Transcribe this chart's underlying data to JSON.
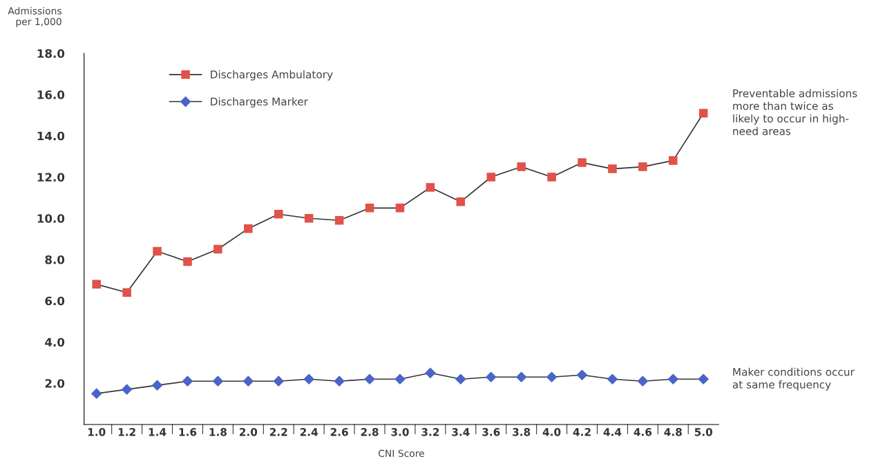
{
  "chart_data": {
    "type": "line",
    "xlabel": "CNI Score",
    "ylabel": "Admissions\nper 1,000",
    "categories": [
      "1.0",
      "1.2",
      "1.4",
      "1.6",
      "1.8",
      "2.0",
      "2.2",
      "2.4",
      "2.6",
      "2.8",
      "3.0",
      "3.2",
      "3.4",
      "3.6",
      "3.8",
      "4.0",
      "4.2",
      "4.4",
      "4.6",
      "4.8",
      "5.0"
    ],
    "series": [
      {
        "name": "Discharges Ambulatory",
        "color": "#e0524a",
        "marker": "square",
        "values": [
          6.8,
          6.4,
          8.4,
          7.9,
          8.5,
          9.5,
          10.2,
          10.0,
          9.9,
          10.5,
          10.5,
          11.5,
          10.8,
          12.0,
          12.5,
          12.0,
          12.7,
          12.4,
          12.5,
          12.8,
          15.1
        ]
      },
      {
        "name": "Discharges Marker",
        "color": "#4a64c8",
        "marker": "diamond",
        "values": [
          1.5,
          1.7,
          1.9,
          2.1,
          2.1,
          2.1,
          2.1,
          2.2,
          2.1,
          2.2,
          2.2,
          2.5,
          2.2,
          2.3,
          2.3,
          2.3,
          2.4,
          2.2,
          2.1,
          2.2,
          2.2
        ]
      }
    ],
    "ylim": [
      0,
      18
    ],
    "yticks": [
      {
        "value": 2,
        "label": "2.0"
      },
      {
        "value": 4,
        "label": "4.0"
      },
      {
        "value": 6,
        "label": "6.0"
      },
      {
        "value": 8,
        "label": "8.0"
      },
      {
        "value": 10,
        "label": "10.0"
      },
      {
        "value": 12,
        "label": "12.0"
      },
      {
        "value": 14,
        "label": "14.0"
      },
      {
        "value": 16,
        "label": "16.0"
      },
      {
        "value": 18,
        "label": "18.0"
      }
    ],
    "grid": false,
    "legend": "top left",
    "line_style": "solid",
    "annotations": [
      {
        "text": "Preventable admissions\nmore than twice as\nlikely to occur in high-\nneed areas",
        "x": "5.0",
        "y": 15.1
      },
      {
        "text": "Maker conditions occur\nat same frequency",
        "x": "5.0",
        "y": 2.2
      }
    ]
  }
}
